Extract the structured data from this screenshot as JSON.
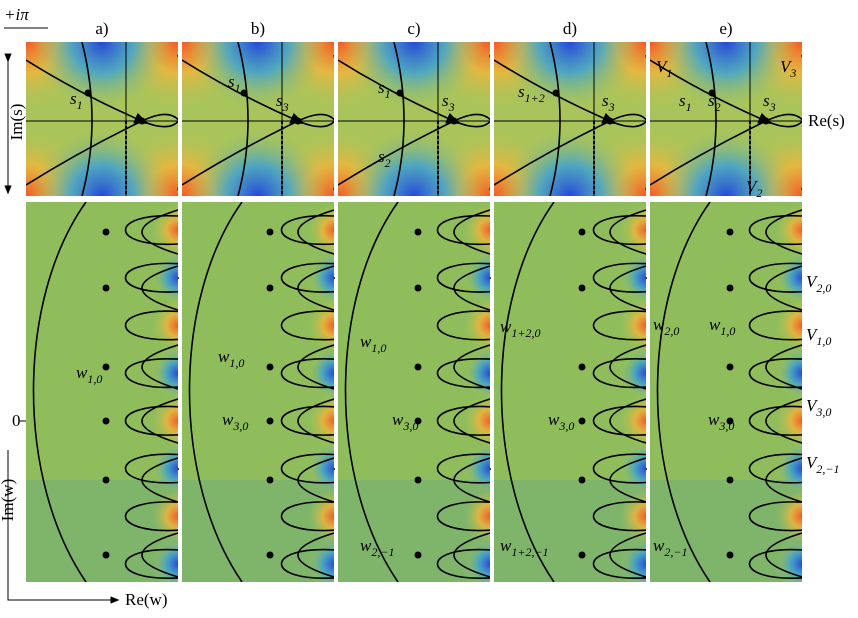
{
  "corner_label": "+iπ",
  "axes": {
    "im_s": "Im(s)",
    "re_s": "Re(s)",
    "im_w": "Im(w)",
    "re_w": "Re(w)",
    "zero": "0"
  },
  "panels": [
    {
      "label": "a)",
      "top_labels": [
        {
          "base": "s",
          "sub": "1"
        }
      ],
      "bottom_labels": [
        {
          "base": "w",
          "sub": "1,0"
        }
      ]
    },
    {
      "label": "b)",
      "top_labels": [
        {
          "base": "s",
          "sub": "1"
        },
        {
          "base": "s",
          "sub": "3"
        }
      ],
      "bottom_labels": [
        {
          "base": "w",
          "sub": "1,0"
        },
        {
          "base": "w",
          "sub": "3,0"
        }
      ]
    },
    {
      "label": "c)",
      "top_labels": [
        {
          "base": "s",
          "sub": "1"
        },
        {
          "base": "s",
          "sub": "3"
        },
        {
          "base": "s",
          "sub": "2"
        }
      ],
      "bottom_labels": [
        {
          "base": "w",
          "sub": "1,0"
        },
        {
          "base": "w",
          "sub": "3,0"
        },
        {
          "base": "w",
          "sub": "2,−1"
        }
      ]
    },
    {
      "label": "d)",
      "top_labels": [
        {
          "base": "s",
          "sub": "1+2"
        },
        {
          "base": "s",
          "sub": "3"
        }
      ],
      "bottom_labels": [
        {
          "base": "w",
          "sub": "1+2,0"
        },
        {
          "base": "w",
          "sub": "3,0"
        },
        {
          "base": "w",
          "sub": "1+2,−1"
        }
      ]
    },
    {
      "label": "e)",
      "top_labels": [
        {
          "base": "V",
          "sub": "1"
        },
        {
          "base": "V",
          "sub": "3"
        },
        {
          "base": "s",
          "sub": "1"
        },
        {
          "base": "s",
          "sub": "2"
        },
        {
          "base": "s",
          "sub": "3"
        },
        {
          "base": "V",
          "sub": "2"
        }
      ],
      "bottom_labels": [
        {
          "base": "w",
          "sub": "2,0"
        },
        {
          "base": "w",
          "sub": "1,0"
        },
        {
          "base": "w",
          "sub": "3,0"
        },
        {
          "base": "w",
          "sub": "2,−1"
        }
      ]
    }
  ],
  "right_labels": [
    {
      "base": "V",
      "sub": "2,0"
    },
    {
      "base": "V",
      "sub": "1,0"
    },
    {
      "base": "V",
      "sub": "3,0"
    },
    {
      "base": "V",
      "sub": "2,−1"
    }
  ]
}
